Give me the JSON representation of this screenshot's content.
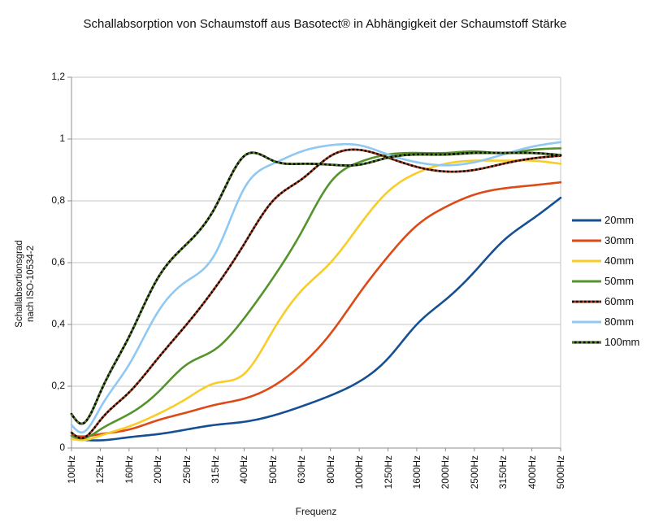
{
  "title": "Schallabsorption von Schaumstoff aus Basotect® in Abhängigkeit der Schaumstoff Stärke",
  "y_axis": {
    "title_line1": "Schallabsortionsgrad",
    "title_line2": "nach ISO-10534-2"
  },
  "x_axis": {
    "title": "Frequenz"
  },
  "chart_data": {
    "type": "line",
    "title": "Schallabsorption von Schaumstoff aus Basotect® in Abhängigkeit der Schaumstoff Stärke",
    "xlabel": "Frequenz",
    "ylabel": "Schallabsortionsgrad nach ISO-10534-2",
    "ylim": [
      0,
      1.2
    ],
    "grid": "horizontal",
    "legend_position": "right",
    "smooth_lines": true,
    "x_categories": [
      "100Hz",
      "125Hz",
      "160Hz",
      "200Hz",
      "250Hz",
      "315Hz",
      "400Hz",
      "500Hz",
      "630Hz",
      "800Hz",
      "1000Hz",
      "1250Hz",
      "1600Hz",
      "2000Hz",
      "2500Hz",
      "3150Hz",
      "4000Hz",
      "5000Hz"
    ],
    "y_ticks": [
      {
        "label": "1,2",
        "value": 1.2
      },
      {
        "label": "1",
        "value": 1.0
      },
      {
        "label": "0,8",
        "value": 0.8
      },
      {
        "label": "0,6",
        "value": 0.6
      },
      {
        "label": "0,4",
        "value": 0.4
      },
      {
        "label": "0,2",
        "value": 0.2
      },
      {
        "label": "0",
        "value": 0.0
      }
    ],
    "series": [
      {
        "name": "20mm",
        "color": "#165093",
        "values": [
          0.03,
          0.025,
          0.035,
          0.045,
          0.06,
          0.075,
          0.085,
          0.105,
          0.135,
          0.17,
          0.215,
          0.29,
          0.4,
          0.48,
          0.57,
          0.67,
          0.74,
          0.81
        ]
      },
      {
        "name": "30mm",
        "color": "#dd4a17",
        "values": [
          0.04,
          0.045,
          0.06,
          0.09,
          0.115,
          0.14,
          0.16,
          0.2,
          0.27,
          0.37,
          0.5,
          0.62,
          0.72,
          0.78,
          0.82,
          0.84,
          0.85,
          0.86
        ]
      },
      {
        "name": "40mm",
        "color": "#f8cd28",
        "values": [
          0.03,
          0.04,
          0.07,
          0.11,
          0.16,
          0.21,
          0.24,
          0.38,
          0.51,
          0.6,
          0.72,
          0.83,
          0.89,
          0.92,
          0.93,
          0.93,
          0.93,
          0.92
        ]
      },
      {
        "name": "50mm",
        "color": "#55942c",
        "values": [
          0.04,
          0.06,
          0.11,
          0.18,
          0.27,
          0.32,
          0.42,
          0.55,
          0.7,
          0.86,
          0.925,
          0.95,
          0.955,
          0.955,
          0.96,
          0.955,
          0.965,
          0.97
        ]
      },
      {
        "name": "60mm",
        "color": "#a03a1e",
        "overlay_color": "#000000",
        "overlay_dash": "2.5 2.5",
        "values": [
          0.05,
          0.09,
          0.18,
          0.29,
          0.4,
          0.52,
          0.66,
          0.8,
          0.87,
          0.945,
          0.965,
          0.94,
          0.91,
          0.895,
          0.9,
          0.92,
          0.937,
          0.946
        ]
      },
      {
        "name": "80mm",
        "color": "#8fc8f2",
        "values": [
          0.075,
          0.13,
          0.27,
          0.44,
          0.54,
          0.63,
          0.84,
          0.92,
          0.96,
          0.98,
          0.98,
          0.95,
          0.925,
          0.915,
          0.925,
          0.95,
          0.975,
          0.99
        ]
      },
      {
        "name": "100mm",
        "color": "#000000",
        "overlay_color": "#4c7f1c",
        "overlay_dash": "3 2.5",
        "values": [
          0.11,
          0.18,
          0.36,
          0.55,
          0.66,
          0.78,
          0.945,
          0.93,
          0.92,
          0.917,
          0.917,
          0.94,
          0.95,
          0.95,
          0.955,
          0.955,
          0.955,
          0.948
        ]
      }
    ],
    "plot_colors": {
      "grid": "#c6c6c6",
      "axis": "#8f8f8f",
      "background": "#ffffff"
    }
  }
}
